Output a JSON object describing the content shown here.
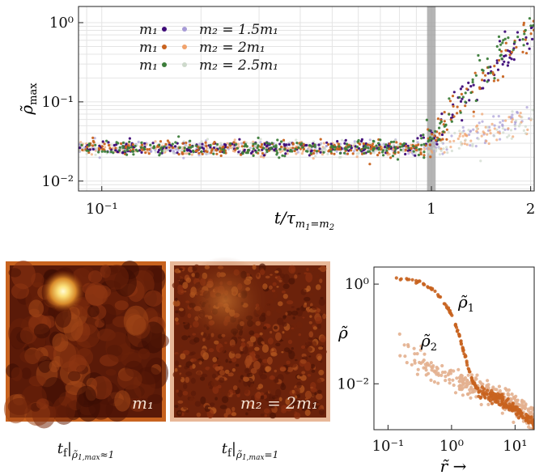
{
  "chart_data": [
    {
      "type": "scatter",
      "xscale": "log",
      "yscale": "log",
      "xlabel": "t/τ_{m1=m2}",
      "ylabel": "ρ̃_max",
      "xlim": [
        0.085,
        2.05
      ],
      "ylim": [
        0.0075,
        1.6
      ],
      "xticks": [
        0.1,
        1,
        2
      ],
      "xtick_labels": [
        "10⁻¹",
        "1",
        "2"
      ],
      "yticks": [
        0.01,
        0.1,
        1
      ],
      "ytick_labels": [
        "10⁻²",
        "10⁻¹",
        "10⁰"
      ],
      "grid": true,
      "legend_position": "top-left",
      "highlight_band": [
        0.97,
        1.03
      ],
      "series": [
        {
          "name": "m₁ (m₂ = 1.5m₁)",
          "color": "#3d0a78",
          "baseline": 0.026,
          "rise_start": 0.9,
          "end_value": 0.75
        },
        {
          "name": "m₂ = 1.5m₁",
          "color": "#a79bd6",
          "baseline": 0.026,
          "rise_start": 1.0,
          "end_value": 0.07
        },
        {
          "name": "m₁ (m₂ = 2m₁)",
          "color": "#c8631f",
          "baseline": 0.026,
          "rise_start": 0.95,
          "end_value": 0.85
        },
        {
          "name": "m₂ = 2m₁",
          "color": "#f0a36d",
          "baseline": 0.026,
          "rise_start": 1.0,
          "end_value": 0.06
        },
        {
          "name": "m₁ (m₂ = 2.5m₁)",
          "color": "#3c7d3a",
          "baseline": 0.026,
          "rise_start": 0.92,
          "end_value": 0.95
        },
        {
          "name": "m₂ = 2.5m₁",
          "color": "#cdd9cb",
          "baseline": 0.026,
          "rise_start": 1.0,
          "end_value": 0.05
        }
      ],
      "legend": [
        {
          "left": "m₁",
          "right": "m₂ = 1.5m₁",
          "c1": "#3d0a78",
          "c2": "#a79bd6"
        },
        {
          "left": "m₁",
          "right": "m₂ = 2m₁",
          "c1": "#c8631f",
          "c2": "#f0a36d"
        },
        {
          "left": "m₁",
          "right": "m₂ = 2.5m₁",
          "c1": "#3c7d3a",
          "c2": "#cdd9cb"
        }
      ]
    },
    {
      "type": "heatmap",
      "label": "m₁",
      "caption": "t_f|ρ̃₁,max≈1",
      "frame_color": "#c8631f",
      "hotspot": true
    },
    {
      "type": "heatmap",
      "label": "m₂ = 2m₁",
      "caption": "t_f|ρ̃₁,max=1",
      "frame_color": "#e8b898",
      "hotspot": false
    },
    {
      "type": "scatter",
      "xscale": "log",
      "yscale": "log",
      "xlabel": "r̃ →",
      "ylabel": "ρ̃",
      "xlim": [
        0.06,
        20
      ],
      "ylim": [
        0.0012,
        2.2
      ],
      "xticks": [
        0.1,
        1,
        10
      ],
      "xtick_labels": [
        "10⁻¹",
        "10⁰",
        "10¹"
      ],
      "yticks": [
        0.01,
        1
      ],
      "ytick_labels": [
        "10⁻²",
        "10⁰"
      ],
      "series": [
        {
          "name": "ρ̃₁",
          "color": "#c8631f",
          "x": [
            0.12,
            0.2,
            0.3,
            0.5,
            0.7,
            1.0,
            1.3,
            1.6,
            2.0,
            2.5,
            3.0,
            4.0,
            6.0,
            8.0,
            12.0,
            20.0
          ],
          "y": [
            1.3,
            1.25,
            1.1,
            0.8,
            0.5,
            0.25,
            0.1,
            0.04,
            0.014,
            0.008,
            0.0065,
            0.006,
            0.0045,
            0.0035,
            0.0025,
            0.0016
          ]
        },
        {
          "name": "ρ̃₂",
          "color": "#e3b08f",
          "x": [
            0.12,
            0.2,
            0.3,
            0.5,
            0.7,
            1.0,
            1.5,
            2.0,
            3.0,
            5.0,
            8.0,
            12.0,
            20.0
          ],
          "y": [
            0.07,
            0.045,
            0.03,
            0.02,
            0.016,
            0.013,
            0.011,
            0.009,
            0.008,
            0.006,
            0.004,
            0.003,
            0.002
          ]
        }
      ],
      "labels": [
        "ρ̃₁",
        "ρ̃₂"
      ]
    }
  ],
  "panels": {
    "heat1_label": "m₁",
    "heat2_label": "m₂ = 2m₁"
  }
}
